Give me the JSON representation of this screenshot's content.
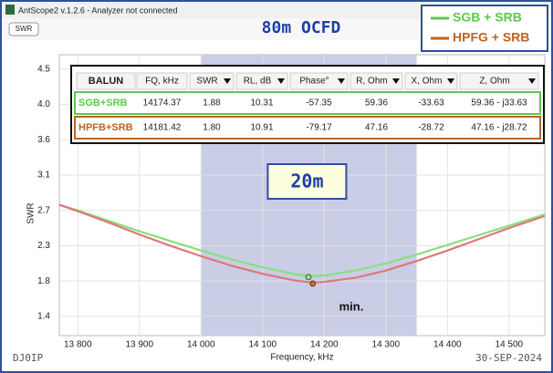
{
  "window": {
    "title": "AntScope2 v.1.2.6 - Analyzer not connected",
    "tab": "SWR"
  },
  "chart_data": {
    "type": "line",
    "title": "80m OCFD",
    "x_label": "Frequency, kHz",
    "y_label": "SWR",
    "xlim": [
      13770,
      14558
    ],
    "ylim": [
      1.14,
      4.64
    ],
    "xticks": [
      {
        "value": 13800,
        "label": "13 800"
      },
      {
        "value": 13900,
        "label": "13 900"
      },
      {
        "value": 14000,
        "label": "14 000"
      },
      {
        "value": 14100,
        "label": "14 100"
      },
      {
        "value": 14200,
        "label": "14 200"
      },
      {
        "value": 14300,
        "label": "14 300"
      },
      {
        "value": 14400,
        "label": "14 400"
      },
      {
        "value": 14500,
        "label": "14 500"
      }
    ],
    "yticks": [
      {
        "value": 1.38,
        "label": "1.4"
      },
      {
        "value": 1.82,
        "label": "1.8"
      },
      {
        "value": 2.26,
        "label": "2.3"
      },
      {
        "value": 2.7,
        "label": "2.7"
      },
      {
        "value": 3.14,
        "label": "3.1"
      },
      {
        "value": 3.58,
        "label": "3.6"
      },
      {
        "value": 4.02,
        "label": "4.0"
      },
      {
        "value": 4.46,
        "label": "4.5"
      }
    ],
    "grid": true,
    "legend": "top-right",
    "band": {
      "x": [
        14000,
        14350
      ],
      "color": "#c9cde6",
      "label": "20m"
    },
    "annotation": "min.",
    "series": [
      {
        "name": "SGB + SRB",
        "color": "#88e07a",
        "legend_color": "#5cc84e",
        "x": [
          13770,
          13800,
          13850,
          13900,
          13950,
          14000,
          14050,
          14100,
          14150,
          14174,
          14200,
          14250,
          14300,
          14350,
          14400,
          14450,
          14500,
          14558
        ],
        "values": [
          2.77,
          2.7,
          2.57,
          2.44,
          2.32,
          2.2,
          2.09,
          1.99,
          1.91,
          1.88,
          1.89,
          1.95,
          2.04,
          2.15,
          2.27,
          2.39,
          2.51,
          2.65
        ],
        "marker": {
          "x": 14174.37,
          "y": 1.88
        }
      },
      {
        "name": "HPFG + SRB",
        "color": "#e07878",
        "legend_color": "#c0631e",
        "x": [
          13770,
          13800,
          13850,
          13900,
          13950,
          14000,
          14050,
          14100,
          14150,
          14181,
          14200,
          14250,
          14300,
          14350,
          14400,
          14450,
          14500,
          14558
        ],
        "values": [
          2.77,
          2.69,
          2.55,
          2.4,
          2.26,
          2.13,
          2.01,
          1.91,
          1.83,
          1.8,
          1.81,
          1.86,
          1.95,
          2.07,
          2.2,
          2.34,
          2.48,
          2.63
        ],
        "marker": {
          "x": 14181.42,
          "y": 1.8
        }
      }
    ]
  },
  "table": {
    "header": [
      "BALUN",
      "FQ, kHz",
      "SWR",
      "RL, dB",
      "Phase°",
      "R, Ohm",
      "X, Ohm",
      "Z, Ohm"
    ],
    "rows": [
      [
        "SGB+SRB",
        "14174.37",
        "1.88",
        "10.31",
        "-57.35",
        "59.36",
        "-33.63",
        "59.36 - j33.63"
      ],
      [
        "HPFB+SRB",
        "14181.42",
        "1.80",
        "10.91",
        "-79.17",
        "47.16",
        "-28.72",
        "47.16 - j28.72"
      ]
    ]
  },
  "footer": {
    "left": "DJ0IP",
    "right": "30-SEP-2024"
  }
}
